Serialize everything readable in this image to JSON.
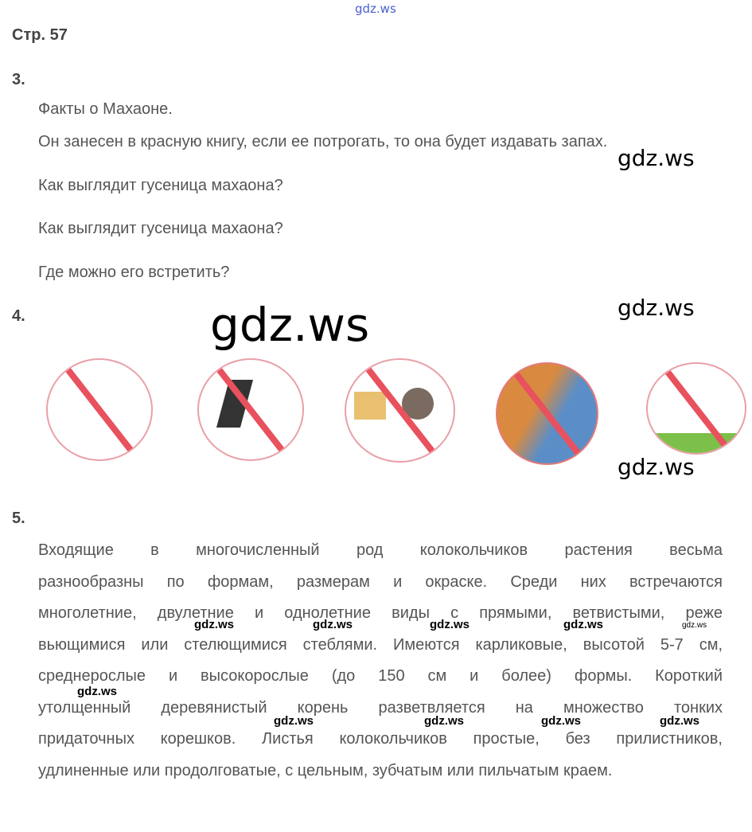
{
  "watermark": "gdz.ws",
  "page_title": "Стр. 57",
  "task3": {
    "number": "3.",
    "lines": [
      "Факты о Махаоне.",
      "Он занесен в красную книгу, если ее потрогать, то она будет издавать запах.",
      "Как выглядит гусеница махаона?",
      "Как выглядит гусеница махаона?",
      "Где можно его встретить?"
    ]
  },
  "task4": {
    "number": "4.",
    "signs": [
      "prohibition-sign-catching-insects",
      "prohibition-sign-crushing",
      "prohibition-sign-destroying-nests",
      "prohibition-sign-burning-grass",
      "prohibition-sign-picking-flowers"
    ]
  },
  "task5": {
    "number": "5.",
    "lines": [
      "Входящие в многочисленный род колокольчиков растения весьма",
      "разнообразны по формам, размерам и окраске. Среди них встречаются",
      "многолетние, двулетние и однолетние виды с прямыми, ветвистыми, реже",
      "вьющимися или стелющимися стеблями. Имеются карликовые, высотой 5-7 см,",
      "среднерослые и высокорослые (до 150 см и более) формы. Короткий",
      "утолщенный деревянистый корень разветвляется на множество тонких",
      "придаточных корешков. Листья колокольчиков простые, без прилистников,",
      "удлиненные или продолговатые, с цельным, зубчатым или пильчатым краем."
    ]
  }
}
